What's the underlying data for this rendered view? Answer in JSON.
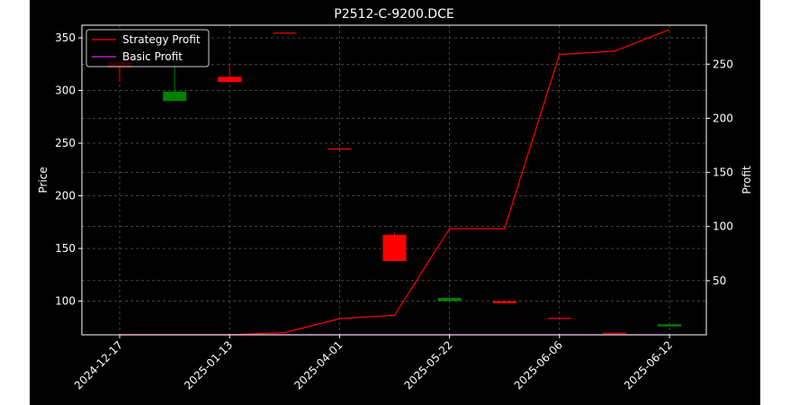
{
  "chart_data": {
    "type": "candlestick",
    "title": "P2512-C-9200.DCE",
    "xlabel": "",
    "ylabel_left": "Price",
    "ylabel_right": "Profit",
    "x_tick_labels": [
      "2024-12-17",
      "2025-01-13",
      "2025-04-01",
      "2025-05-22",
      "2025-06-06",
      "2025-06-12"
    ],
    "y_left_ticks": [
      100,
      150,
      200,
      250,
      300,
      350
    ],
    "y_right_ticks": [
      50,
      100,
      150,
      200,
      250
    ],
    "ylim_left": [
      68,
      362
    ],
    "ylim_right": [
      0,
      286
    ],
    "legend": {
      "placement": "top-left",
      "entries": [
        "Strategy Profit",
        "Basic Profit"
      ]
    },
    "grid": true,
    "colors": {
      "up": "#ff0000",
      "down": "#008000",
      "strategy": "#ff0000",
      "basic": "#d52fd5",
      "background": "#000000",
      "grid": "#b0b0b0",
      "text": "#ffffff"
    },
    "candles": [
      {
        "x": 0,
        "open": 322,
        "close": 327,
        "high": 328,
        "low": 308
      },
      {
        "x": 1,
        "open": 299,
        "close": 290,
        "high": 340,
        "low": 290
      },
      {
        "x": 2,
        "open": 308,
        "close": 313,
        "high": 324,
        "low": 308
      },
      {
        "x": 3,
        "open": 355,
        "close": 355,
        "high": 355,
        "low": 355
      },
      {
        "x": 4,
        "open": 245,
        "close": 245,
        "high": 245,
        "low": 245
      },
      {
        "x": 5,
        "open": 138,
        "close": 163,
        "high": 165,
        "low": 138
      },
      {
        "x": 6,
        "open": 103,
        "close": 100,
        "high": 103,
        "low": 100
      },
      {
        "x": 7,
        "open": 98,
        "close": 100,
        "high": 100,
        "low": 98
      },
      {
        "x": 8,
        "open": 84,
        "close": 84,
        "high": 84,
        "low": 84
      },
      {
        "x": 9,
        "open": 70,
        "close": 70,
        "high": 70,
        "low": 70
      },
      {
        "x": 10,
        "open": 78,
        "close": 76,
        "high": 78,
        "low": 76
      }
    ],
    "series": [
      {
        "name": "Strategy Profit",
        "x": [
          0,
          1,
          2,
          3,
          4,
          5,
          6,
          7,
          8,
          9,
          10
        ],
        "values": [
          0,
          0,
          0,
          2,
          15,
          18,
          98,
          98,
          259,
          262,
          282
        ]
      },
      {
        "name": "Basic Profit",
        "x": [
          0,
          1,
          2,
          3,
          4,
          5,
          6,
          7,
          8,
          9,
          10
        ],
        "values": [
          0,
          0,
          0,
          0,
          0,
          0,
          0,
          0,
          0,
          0,
          0
        ]
      }
    ]
  }
}
